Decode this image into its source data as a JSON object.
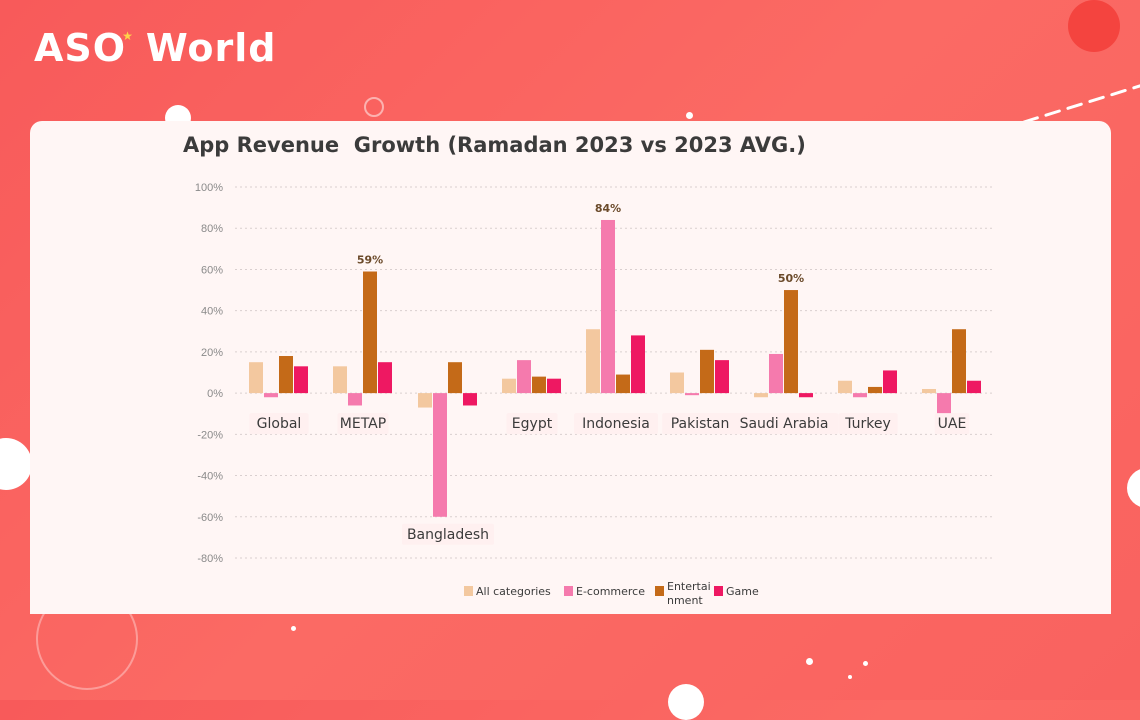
{
  "brand": {
    "logo_left": "ASO",
    "logo_star": "★",
    "logo_right": "World"
  },
  "colors": {
    "background": "#f85a5a",
    "all_categories": "#f3c89f",
    "ecommerce": "#f57aad",
    "entertainment": "#c46a18",
    "game": "#ee1862"
  },
  "chart_data": {
    "type": "bar",
    "title": "App Revenue  Growth (Ramadan 2023 vs 2023 AVG.)",
    "xlabel": "",
    "ylabel": "",
    "ylim": [
      -80,
      100
    ],
    "yticks": [
      100,
      80,
      60,
      40,
      20,
      0,
      -20,
      -40,
      -60,
      -80
    ],
    "ytick_labels": [
      "100%",
      "80%",
      "60%",
      "40%",
      "20%",
      "0%",
      "-20%",
      "-40%",
      "-60%",
      "-80%"
    ],
    "grid": true,
    "categories": [
      "Global",
      "METAP",
      "Bangladesh",
      "Egypt",
      "Indonesia",
      "Pakistan",
      "Saudi Arabia",
      "Turkey",
      "UAE"
    ],
    "series": [
      {
        "name": "All categories",
        "values": [
          15,
          13,
          -7,
          7,
          31,
          10,
          -2,
          6,
          2
        ]
      },
      {
        "name": "E-commerce",
        "values": [
          -2,
          -6,
          -60,
          16,
          84,
          -1,
          19,
          -2,
          -10
        ]
      },
      {
        "name": "Entertainment",
        "legend_lines": [
          "Entertai",
          "nment"
        ],
        "values": [
          18,
          59,
          15,
          8,
          9,
          21,
          50,
          3,
          31
        ]
      },
      {
        "name": "Game",
        "values": [
          13,
          15,
          -6,
          7,
          28,
          16,
          -2,
          11,
          6
        ]
      }
    ],
    "annotations": [
      {
        "category": "METAP",
        "series": "Entertainment",
        "text": "59%"
      },
      {
        "category": "Indonesia",
        "series": "E-commerce",
        "text": "84%"
      },
      {
        "category": "Saudi Arabia",
        "series": "Entertainment",
        "text": "50%"
      }
    ],
    "legend_position": "bottom-center"
  }
}
